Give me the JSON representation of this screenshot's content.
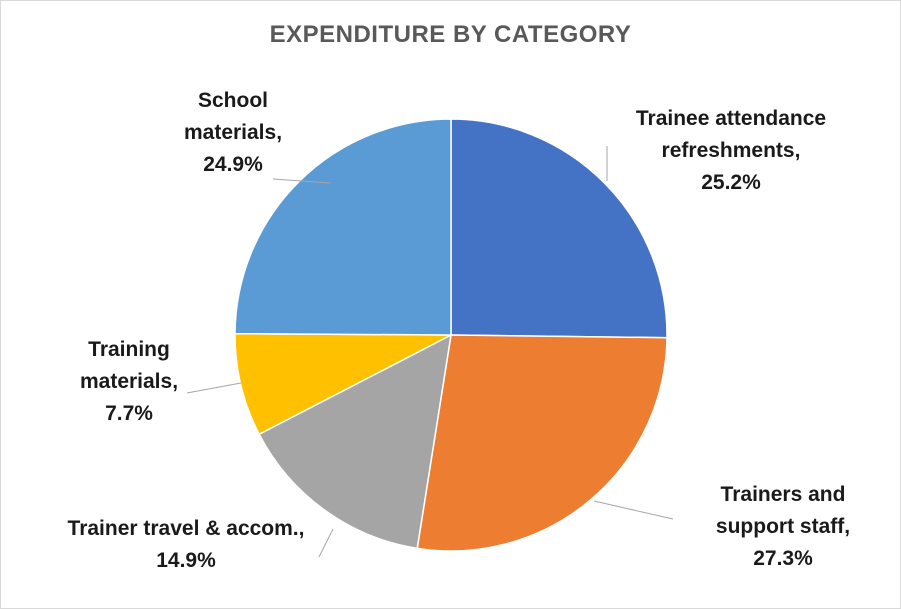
{
  "chart_data": {
    "type": "pie",
    "title": "EXPENDITURE BY CATEGORY",
    "slices": [
      {
        "name": "Trainee attendance refreshments",
        "label_lines": [
          "Trainee attendance",
          "refreshments,",
          "25.2%"
        ],
        "value": 25.2,
        "color": "#4472c4"
      },
      {
        "name": "Trainers and support staff",
        "label_lines": [
          "Trainers and",
          "support staff,",
          "27.3%"
        ],
        "value": 27.3,
        "color": "#ed7d31"
      },
      {
        "name": "Trainer travel & accom.",
        "label_lines": [
          "Trainer travel & accom.,",
          "14.9%"
        ],
        "value": 14.9,
        "color": "#a5a5a5"
      },
      {
        "name": "Training materials",
        "label_lines": [
          "Training",
          "materials,",
          "7.7%"
        ],
        "value": 7.7,
        "color": "#ffc000"
      },
      {
        "name": "School materials",
        "label_lines": [
          "School",
          "materials,",
          "24.9%"
        ],
        "value": 24.9,
        "color": "#5b9bd5"
      }
    ]
  }
}
